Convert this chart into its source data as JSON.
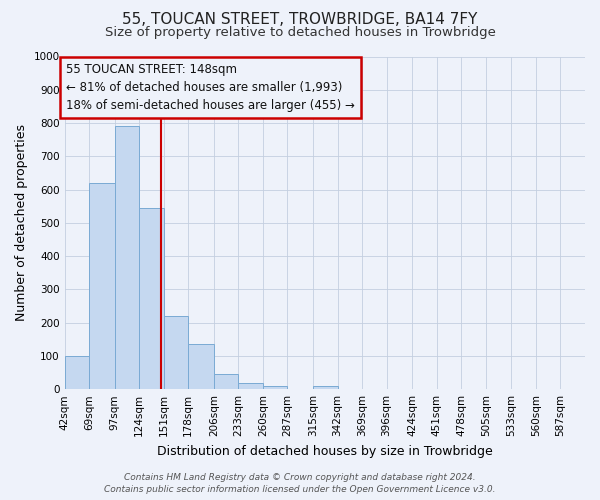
{
  "title": "55, TOUCAN STREET, TROWBRIDGE, BA14 7FY",
  "subtitle": "Size of property relative to detached houses in Trowbridge",
  "xlabel": "Distribution of detached houses by size in Trowbridge",
  "ylabel": "Number of detached properties",
  "bin_labels": [
    "42sqm",
    "69sqm",
    "97sqm",
    "124sqm",
    "151sqm",
    "178sqm",
    "206sqm",
    "233sqm",
    "260sqm",
    "287sqm",
    "315sqm",
    "342sqm",
    "369sqm",
    "396sqm",
    "424sqm",
    "451sqm",
    "478sqm",
    "505sqm",
    "533sqm",
    "560sqm",
    "587sqm"
  ],
  "bin_edges": [
    42,
    69,
    97,
    124,
    151,
    178,
    206,
    233,
    260,
    287,
    315,
    342,
    369,
    396,
    424,
    451,
    478,
    505,
    533,
    560,
    587,
    614
  ],
  "bar_values": [
    100,
    620,
    790,
    545,
    220,
    135,
    45,
    18,
    10,
    0,
    10,
    0,
    0,
    0,
    0,
    0,
    0,
    0,
    0,
    0,
    0
  ],
  "bar_color": "#c5d8f0",
  "bar_edge_color": "#7aaad4",
  "ylim": [
    0,
    1000
  ],
  "yticks": [
    0,
    100,
    200,
    300,
    400,
    500,
    600,
    700,
    800,
    900,
    1000
  ],
  "property_size": 148,
  "property_line_color": "#cc0000",
  "annotation_title": "55 TOUCAN STREET: 148sqm",
  "annotation_line1": "← 81% of detached houses are smaller (1,993)",
  "annotation_line2": "18% of semi-detached houses are larger (455) →",
  "annotation_box_color": "#cc0000",
  "bg_color": "#eef2fa",
  "footer_line1": "Contains HM Land Registry data © Crown copyright and database right 2024.",
  "footer_line2": "Contains public sector information licensed under the Open Government Licence v3.0.",
  "title_fontsize": 11,
  "subtitle_fontsize": 9.5,
  "axis_label_fontsize": 9,
  "tick_fontsize": 7.5,
  "annotation_fontsize": 8.5,
  "footer_fontsize": 6.5
}
